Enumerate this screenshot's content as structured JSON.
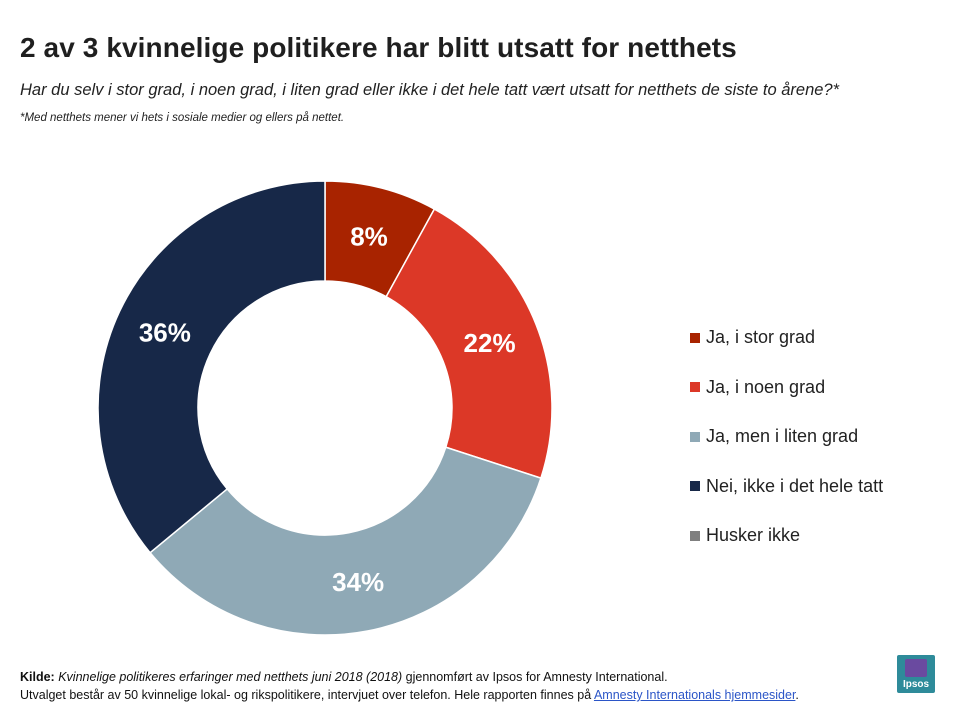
{
  "header": {
    "title": "2 av 3 kvinnelige politikere har blitt utsatt for netthets",
    "subtitle": "Har du selv i stor grad, i noen grad, i liten grad eller ikke i det hele tatt vært utsatt for netthets de siste to årene?*",
    "footnote": "*Med netthets mener vi hets i sosiale medier og ellers på nettet."
  },
  "chart_data": {
    "type": "pie",
    "style": "donut",
    "title": "",
    "categories": [
      "Ja, i stor grad",
      "Ja, i noen grad",
      "Ja, men i liten grad",
      "Nei, ikke i det hele tatt",
      "Husker ikke"
    ],
    "values": [
      8,
      22,
      34,
      36,
      0
    ],
    "labels": [
      "8%",
      "22%",
      "34%",
      "36%",
      ""
    ],
    "colors": [
      "#a82300",
      "#dc3827",
      "#8fa9b6",
      "#172848",
      "#7f7f7f"
    ],
    "legend_position": "right"
  },
  "legend": {
    "items": [
      {
        "label": "Ja, i stor grad",
        "color": "#a82300"
      },
      {
        "label": "Ja, i noen grad",
        "color": "#dc3827"
      },
      {
        "label": "Ja, men i liten grad",
        "color": "#8fa9b6"
      },
      {
        "label": "Nei, ikke i det hele tatt",
        "color": "#172848"
      },
      {
        "label": "Husker ikke",
        "color": "#7f7f7f"
      }
    ]
  },
  "source": {
    "label": "Kilde:",
    "title": "Kvinnelige politikeres erfaringer med netthets juni 2018  (2018)",
    "rest": " gjennomført av Ipsos for Amnesty International.",
    "line2": "Utvalget består av 50  kvinnelige lokal- og rikspolitikere, intervjuet over telefon. Hele rapporten finnes på ",
    "link_text": "Amnesty Internationals hjemmesider",
    "end": "."
  },
  "logo": {
    "text": "Ipsos",
    "color": "#2e8b9a"
  }
}
